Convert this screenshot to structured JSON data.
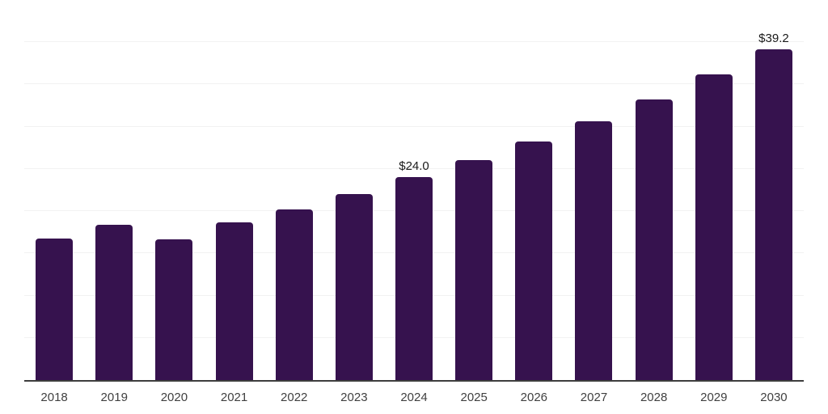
{
  "chart_data": {
    "type": "bar",
    "title": "",
    "xlabel": "",
    "ylabel": "",
    "categories": [
      "2018",
      "2019",
      "2020",
      "2021",
      "2022",
      "2023",
      "2024",
      "2025",
      "2026",
      "2027",
      "2028",
      "2029",
      "2030"
    ],
    "values": [
      16.8,
      18.4,
      16.7,
      18.7,
      20.2,
      22.0,
      24.0,
      26.0,
      28.2,
      30.6,
      33.2,
      36.2,
      39.2
    ],
    "data_labels": [
      {
        "category": "2024",
        "text": "$24.0"
      },
      {
        "category": "2030",
        "text": "$39.2"
      }
    ],
    "ylim": [
      0,
      45
    ],
    "grid_step": 5,
    "grid": true,
    "legend": false,
    "colors": {
      "bar": "#36124e",
      "gridline": "#f2f2f2",
      "axis_line": "#3d3d3d",
      "tick_label": "#404040",
      "data_label": "#1a1a1a"
    }
  }
}
